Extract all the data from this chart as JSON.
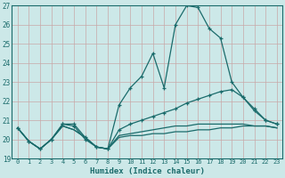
{
  "xlabel": "Humidex (Indice chaleur)",
  "background_color": "#cce8e8",
  "grid_color": "#c8a8a8",
  "line_color": "#1a6b6b",
  "xlim": [
    -0.5,
    23.5
  ],
  "ylim": [
    19,
    27
  ],
  "xticks": [
    0,
    1,
    2,
    3,
    4,
    5,
    6,
    7,
    8,
    9,
    10,
    11,
    12,
    13,
    14,
    15,
    16,
    17,
    18,
    19,
    20,
    21,
    22,
    23
  ],
  "yticks": [
    19,
    20,
    21,
    22,
    23,
    24,
    25,
    26,
    27
  ],
  "line1_x": [
    0,
    1,
    2,
    3,
    4,
    5,
    6,
    7,
    8,
    9,
    10,
    11,
    12,
    13,
    14,
    15,
    16,
    17,
    18,
    19,
    20,
    21,
    22,
    23
  ],
  "line1_y": [
    20.6,
    19.9,
    19.5,
    20.0,
    20.8,
    20.8,
    20.1,
    19.6,
    19.5,
    21.8,
    22.7,
    23.3,
    24.5,
    22.7,
    26.0,
    27.0,
    26.9,
    25.8,
    25.3,
    23.0,
    22.2,
    21.5,
    21.0,
    20.8
  ],
  "line2_x": [
    0,
    1,
    2,
    3,
    4,
    5,
    6,
    7,
    8,
    9,
    10,
    11,
    12,
    13,
    14,
    15,
    16,
    17,
    18,
    19,
    20,
    21,
    22,
    23
  ],
  "line2_y": [
    20.6,
    19.9,
    19.5,
    20.0,
    20.8,
    20.7,
    20.0,
    19.6,
    19.5,
    20.5,
    20.8,
    21.0,
    21.2,
    21.4,
    21.6,
    21.9,
    22.1,
    22.3,
    22.5,
    22.6,
    22.2,
    21.6,
    21.0,
    20.8
  ],
  "line3_x": [
    0,
    1,
    2,
    3,
    4,
    5,
    6,
    7,
    8,
    9,
    10,
    11,
    12,
    13,
    14,
    15,
    16,
    17,
    18,
    19,
    20,
    21,
    22,
    23
  ],
  "line3_y": [
    20.6,
    19.9,
    19.5,
    20.0,
    20.7,
    20.5,
    20.1,
    19.6,
    19.5,
    20.2,
    20.3,
    20.4,
    20.5,
    20.6,
    20.7,
    20.7,
    20.8,
    20.8,
    20.8,
    20.8,
    20.8,
    20.7,
    20.7,
    20.6
  ],
  "line4_x": [
    0,
    1,
    2,
    3,
    4,
    5,
    6,
    7,
    8,
    9,
    10,
    11,
    12,
    13,
    14,
    15,
    16,
    17,
    18,
    19,
    20,
    21,
    22,
    23
  ],
  "line4_y": [
    20.6,
    19.9,
    19.5,
    20.0,
    20.7,
    20.5,
    20.1,
    19.6,
    19.5,
    20.1,
    20.2,
    20.2,
    20.3,
    20.3,
    20.4,
    20.4,
    20.5,
    20.5,
    20.6,
    20.6,
    20.7,
    20.7,
    20.7,
    20.6
  ]
}
